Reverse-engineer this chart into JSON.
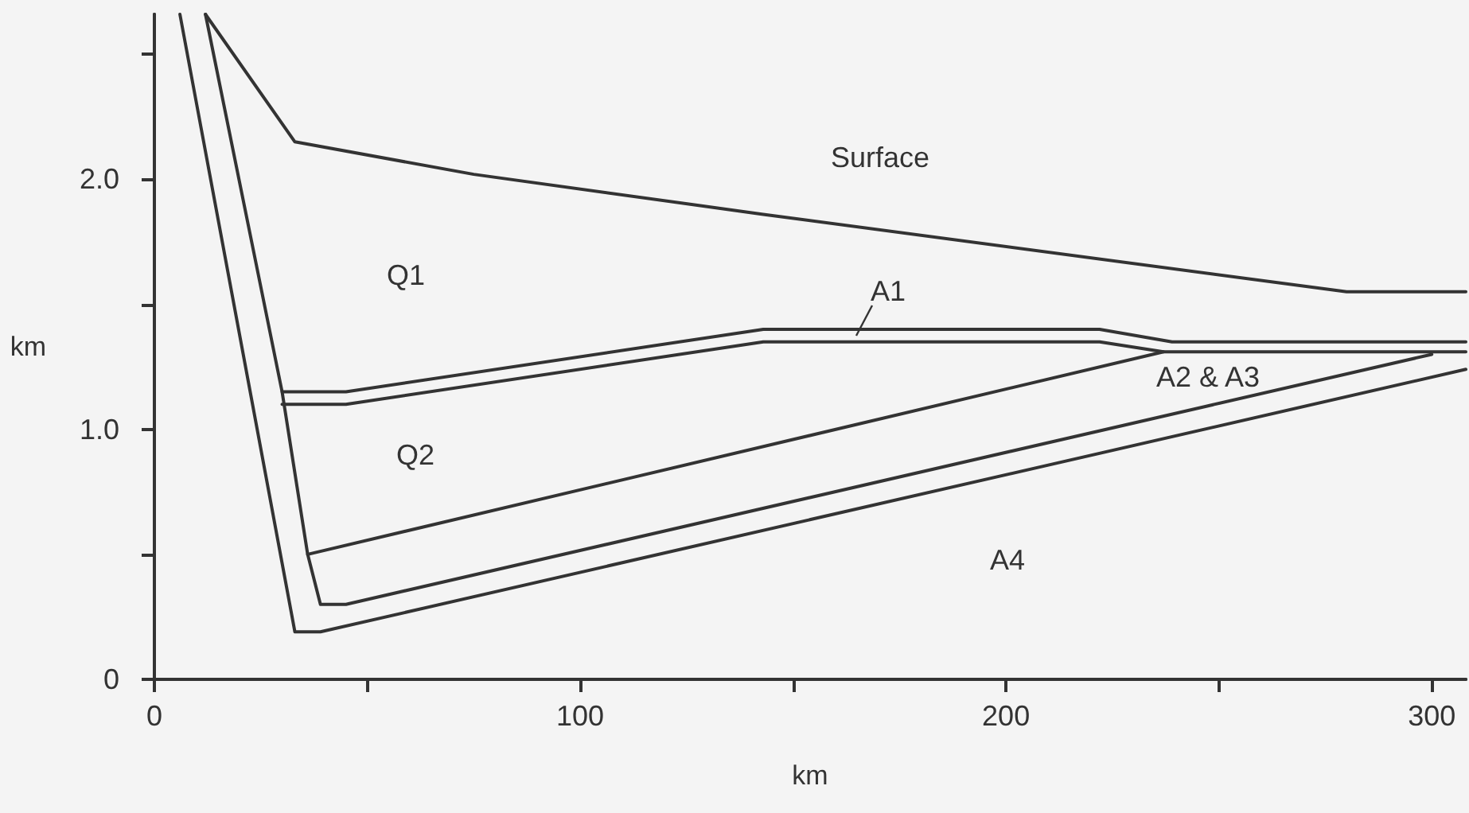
{
  "chart_data": {
    "type": "line",
    "xlabel": "km",
    "ylabel": "km",
    "xlim": [
      0,
      308
    ],
    "ylim": [
      0,
      2.66
    ],
    "xticks": [
      0,
      {
        "value": 50,
        "label": null
      },
      100,
      {
        "value": 150,
        "label": null
      },
      200,
      {
        "value": 250,
        "label": null
      },
      300
    ],
    "yticks": [
      0,
      {
        "value": 0.5,
        "label": null
      },
      {
        "value": 1.0,
        "label": "1.0"
      },
      {
        "value": 1.5,
        "label": null
      },
      {
        "value": 2.0,
        "label": "2.0"
      },
      {
        "value": 2.5,
        "label": null
      }
    ],
    "grid": false,
    "marker": "none",
    "line_style": "solid",
    "series": [
      {
        "color": "#333333",
        "x": [
          12,
          33,
          75,
          143,
          280,
          308
        ],
        "values": [
          2.66,
          2.15,
          2.02,
          1.86,
          1.55,
          1.55
        ]
      },
      {
        "color": "#333333",
        "x": [
          6,
          33,
          39,
          308
        ],
        "values": [
          2.66,
          0.19,
          0.19,
          1.24
        ]
      },
      {
        "color": "#333333",
        "x": [
          12,
          30,
          36,
          39,
          45,
          300
        ],
        "values": [
          2.66,
          1.15,
          0.5,
          0.3,
          0.3,
          1.3
        ]
      },
      {
        "color": "#333333",
        "x": [
          30,
          45,
          143,
          222,
          239,
          308
        ],
        "values": [
          1.15,
          1.15,
          1.4,
          1.4,
          1.35,
          1.35
        ]
      },
      {
        "color": "#333333",
        "x": [
          30,
          45,
          143,
          222,
          237,
          308
        ],
        "values": [
          1.1,
          1.1,
          1.35,
          1.35,
          1.31,
          1.31
        ]
      },
      {
        "color": "#333333",
        "x": [
          36,
          237
        ],
        "values": [
          0.5,
          1.31
        ]
      }
    ],
    "annotations": [
      "Surface",
      "Q1",
      "A1",
      "Q2",
      "A2 & A3",
      "A4"
    ]
  }
}
